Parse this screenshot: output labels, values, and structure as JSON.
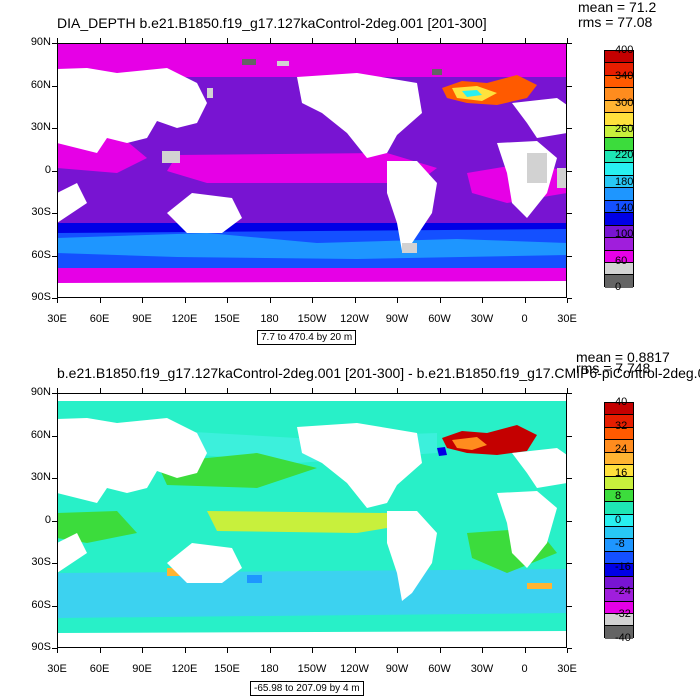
{
  "top": {
    "title": "DIA_DEPTH b.e21.B1850.f19_g17.127kaControl-2deg.001 [201-300]",
    "mean": "mean = 71.2",
    "rms": "rms = 77.08",
    "range_box": "7.7 to 470.4 by 20 m",
    "colorbar_labels": [
      "400",
      "340",
      "300",
      "260",
      "220",
      "180",
      "140",
      "100",
      "60",
      "0"
    ],
    "colorbar_colors": [
      "#c40000",
      "#e61e00",
      "#ff5a00",
      "#ff8c1e",
      "#ffb432",
      "#ffe13c",
      "#c8f03c",
      "#3cdc3c",
      "#1ee6b4",
      "#28f0f0",
      "#28c8f5",
      "#1e96ff",
      "#1450ff",
      "#0000e6",
      "#7814d2",
      "#a01edc",
      "#e600e6",
      "#d2d2d2",
      "#646464"
    ],
    "ocean_color": "#7814d2",
    "high_lat_color": "#e600e6",
    "land_color": "#ffffff",
    "missing_color": "#d2d2d2"
  },
  "bottom": {
    "title": "b.e21.B1850.f19_g17.127kaControl-2deg.001 [201-300] - b.e21.B1850.f19_g17.CMIP6-piControl-2deg.0",
    "mean": "mean = 0.8817",
    "rms": "rms = 7.748",
    "range_box": "-65.98 to 207.09 by 4 m",
    "colorbar_labels": [
      "40",
      "32",
      "24",
      "16",
      "8",
      "0",
      "-8",
      "-16",
      "-24",
      "-32",
      "-40"
    ],
    "colorbar_colors": [
      "#c40000",
      "#e61e00",
      "#ff5a00",
      "#ff8c1e",
      "#ffb432",
      "#ffe13c",
      "#c8f03c",
      "#3cdc3c",
      "#1ee6b4",
      "#28f0f0",
      "#28c8f5",
      "#1e96ff",
      "#1450ff",
      "#0000e6",
      "#7814d2",
      "#a01edc",
      "#e600e6",
      "#d2d2d2",
      "#646464"
    ],
    "ocean_color": "#28f0c8",
    "land_color": "#ffffff"
  },
  "axes": {
    "ylabels": [
      "90N",
      "60N",
      "30N",
      "0",
      "30S",
      "60S",
      "90S"
    ],
    "xlabels": [
      "30E",
      "60E",
      "90E",
      "120E",
      "150E",
      "180",
      "150W",
      "120W",
      "90W",
      "60W",
      "30W",
      "0",
      "30E"
    ]
  },
  "chart_data": [
    {
      "type": "heatmap",
      "title": "DIA_DEPTH b.e21.B1850.f19_g17.127kaControl-2deg.001 [201-300]",
      "xlabel": "",
      "ylabel": "",
      "x_ticks": [
        "30E",
        "60E",
        "90E",
        "120E",
        "150E",
        "180",
        "150W",
        "120W",
        "90W",
        "60W",
        "30W",
        "0",
        "30E"
      ],
      "y_ticks": [
        "90N",
        "60N",
        "30N",
        "0",
        "30S",
        "60S",
        "90S"
      ],
      "xlim": [
        30,
        390
      ],
      "ylim": [
        -90,
        90
      ],
      "colorbar_levels": [
        0,
        60,
        100,
        140,
        180,
        220,
        260,
        300,
        340,
        400
      ],
      "mean": 71.2,
      "rms": 77.08,
      "contour_min": 7.7,
      "contour_max": 470.4,
      "contour_interval": 20,
      "units": "m"
    },
    {
      "type": "heatmap",
      "title": "b.e21.B1850.f19_g17.127kaControl-2deg.001 [201-300] - b.e21.B1850.f19_g17.CMIP6-piControl-2deg.0",
      "xlabel": "",
      "ylabel": "",
      "x_ticks": [
        "30E",
        "60E",
        "90E",
        "120E",
        "150E",
        "180",
        "150W",
        "120W",
        "90W",
        "60W",
        "30W",
        "0",
        "30E"
      ],
      "y_ticks": [
        "90N",
        "60N",
        "30N",
        "0",
        "30S",
        "60S",
        "90S"
      ],
      "xlim": [
        30,
        390
      ],
      "ylim": [
        -90,
        90
      ],
      "colorbar_levels": [
        -40,
        -32,
        -24,
        -16,
        -8,
        0,
        8,
        16,
        24,
        32,
        40
      ],
      "mean": 0.8817,
      "rms": 7.748,
      "contour_min": -65.98,
      "contour_max": 207.09,
      "contour_interval": 4,
      "units": "m"
    }
  ]
}
